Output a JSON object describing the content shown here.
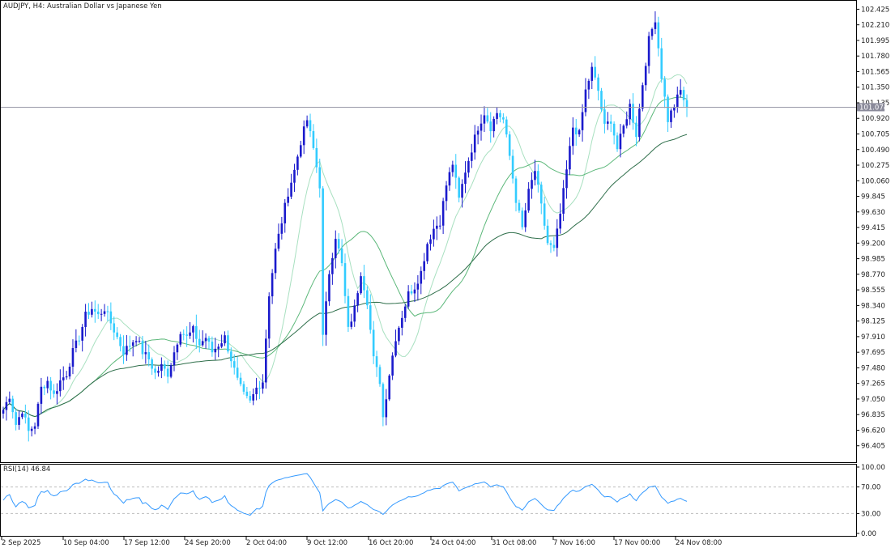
{
  "header": {
    "title": "AUDJPY, H4:  Australian Dollar vs Japanese Yen"
  },
  "colors": {
    "bull": "#1a1acc",
    "bear": "#33ccff",
    "ma_fast": "#a8e0c0",
    "ma_mid": "#5cb87a",
    "ma_slow": "#2e6e4a",
    "rsi": "#3399ff",
    "current_price_line": "#9a9aa8",
    "price_box": "#8a8a9a"
  },
  "chart_data": [
    {
      "type": "candlestick",
      "symbol": "AUDJPY",
      "timeframe": "H4",
      "ylim": [
        96.19,
        102.53
      ],
      "yticks": [
        "102.425",
        "102.210",
        "101.995",
        "101.780",
        "101.565",
        "101.350",
        "101.135",
        "100.920",
        "100.705",
        "100.490",
        "100.275",
        "100.060",
        "99.845",
        "99.630",
        "99.415",
        "99.200",
        "98.985",
        "98.770",
        "98.555",
        "98.340",
        "98.125",
        "97.910",
        "97.695",
        "97.480",
        "97.265",
        "97.050",
        "96.835",
        "96.620",
        "96.405"
      ],
      "xticks": [
        "2 Sep 2025",
        "10 Sep 04:00",
        "17 Sep 12:00",
        "24 Sep 20:00",
        "2 Oct 04:00",
        "9 Oct 12:00",
        "16 Oct 20:00",
        "24 Oct 04:00",
        "31 Oct 08:00",
        "7 Nov 16:00",
        "17 Nov 00:00",
        "24 Nov 08:00"
      ],
      "current_price": "101.074",
      "anchors": [
        [
          0,
          96.9
        ],
        [
          2,
          97.1
        ],
        [
          4,
          96.7
        ],
        [
          6,
          96.9
        ],
        [
          8,
          96.6
        ],
        [
          10,
          96.7
        ],
        [
          12,
          97.2
        ],
        [
          14,
          97.3
        ],
        [
          16,
          97.1
        ],
        [
          18,
          97.3
        ],
        [
          20,
          97.4
        ],
        [
          22,
          97.7
        ],
        [
          24,
          97.9
        ],
        [
          26,
          98.2
        ],
        [
          28,
          98.3
        ],
        [
          30,
          98.2
        ],
        [
          32,
          98.3
        ],
        [
          34,
          98.1
        ],
        [
          36,
          97.9
        ],
        [
          38,
          97.7
        ],
        [
          40,
          97.8
        ],
        [
          42,
          97.9
        ],
        [
          44,
          97.7
        ],
        [
          46,
          97.6
        ],
        [
          48,
          97.4
        ],
        [
          50,
          97.5
        ],
        [
          52,
          97.4
        ],
        [
          54,
          97.7
        ],
        [
          56,
          98.0
        ],
        [
          58,
          97.9
        ],
        [
          60,
          98.0
        ],
        [
          62,
          97.8
        ],
        [
          64,
          97.9
        ],
        [
          66,
          97.7
        ],
        [
          68,
          97.8
        ],
        [
          70,
          97.9
        ],
        [
          72,
          97.6
        ],
        [
          74,
          97.3
        ],
        [
          76,
          97.1
        ],
        [
          78,
          97.0
        ],
        [
          80,
          97.2
        ],
        [
          82,
          97.3
        ],
        [
          84,
          98.5
        ],
        [
          86,
          99.1
        ],
        [
          88,
          99.5
        ],
        [
          90,
          99.9
        ],
        [
          92,
          100.2
        ],
        [
          94,
          100.6
        ],
        [
          96,
          100.9
        ],
        [
          98,
          100.5
        ],
        [
          100,
          100.0
        ],
        [
          101,
          97.9
        ],
        [
          103,
          98.8
        ],
        [
          105,
          99.3
        ],
        [
          107,
          98.9
        ],
        [
          109,
          98.0
        ],
        [
          111,
          98.3
        ],
        [
          113,
          98.8
        ],
        [
          115,
          98.4
        ],
        [
          117,
          97.6
        ],
        [
          119,
          97.3
        ],
        [
          120,
          96.8
        ],
        [
          122,
          97.4
        ],
        [
          124,
          97.9
        ],
        [
          126,
          98.2
        ],
        [
          128,
          98.5
        ],
        [
          130,
          98.6
        ],
        [
          132,
          98.8
        ],
        [
          134,
          99.2
        ],
        [
          136,
          99.4
        ],
        [
          138,
          99.5
        ],
        [
          140,
          100.0
        ],
        [
          142,
          100.3
        ],
        [
          144,
          99.8
        ],
        [
          146,
          100.2
        ],
        [
          148,
          100.5
        ],
        [
          150,
          100.8
        ],
        [
          152,
          101.0
        ],
        [
          154,
          100.8
        ],
        [
          156,
          101.0
        ],
        [
          158,
          100.9
        ],
        [
          160,
          100.4
        ],
        [
          162,
          99.8
        ],
        [
          164,
          99.4
        ],
        [
          166,
          99.9
        ],
        [
          168,
          100.2
        ],
        [
          170,
          99.7
        ],
        [
          172,
          99.2
        ],
        [
          174,
          99.1
        ],
        [
          176,
          99.6
        ],
        [
          178,
          100.2
        ],
        [
          180,
          100.8
        ],
        [
          182,
          100.7
        ],
        [
          184,
          101.3
        ],
        [
          186,
          101.6
        ],
        [
          188,
          101.3
        ],
        [
          190,
          100.8
        ],
        [
          192,
          100.9
        ],
        [
          194,
          100.5
        ],
        [
          196,
          100.8
        ],
        [
          198,
          101.1
        ],
        [
          200,
          100.7
        ],
        [
          202,
          101.4
        ],
        [
          204,
          102.0
        ],
        [
          206,
          102.3
        ],
        [
          208,
          101.5
        ],
        [
          210,
          100.9
        ],
        [
          212,
          101.1
        ],
        [
          214,
          101.3
        ],
        [
          216,
          101.07
        ]
      ]
    },
    {
      "type": "line",
      "indicator": "RSI(14) 46.84",
      "ylim": [
        0,
        100
      ],
      "yticks": [
        "100.00",
        "70.00",
        "30.00",
        "0.00"
      ],
      "levels": [
        70,
        30
      ]
    }
  ]
}
